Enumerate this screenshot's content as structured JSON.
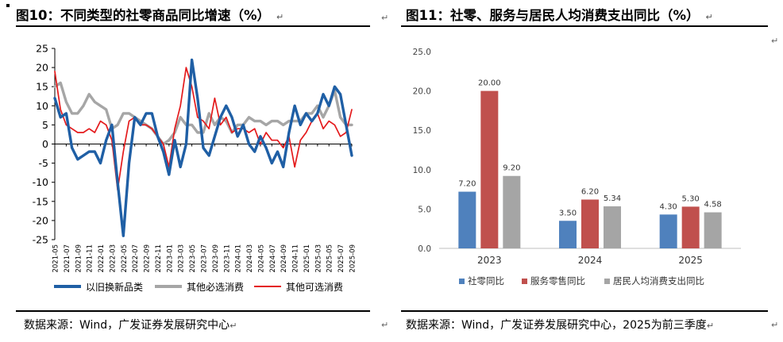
{
  "left": {
    "title": "图10：不同类型的社零商品同比增速（%）",
    "source": "数据来源：Wind，广发证券发展研究中心",
    "chart_data": {
      "type": "line",
      "title": "不同类型的社零商品同比增速（%）",
      "ylim": [
        -25,
        25
      ],
      "yticks": [
        "25",
        "20",
        "15",
        "10",
        "5",
        "0",
        "-5",
        "-10",
        "-15",
        "-20",
        "-25"
      ],
      "xticklabels": [
        "2021-05",
        "2021-07",
        "2021-09",
        "2021-11",
        "2022-01",
        "2022-03",
        "2022-05",
        "2022-07",
        "2022-09",
        "2022-11",
        "2023-01",
        "2023-03",
        "2023-05",
        "2023-07",
        "2023-09",
        "2023-11",
        "2024-01",
        "2024-03",
        "2024-05",
        "2024-07",
        "2024-09",
        "2024-11",
        "2025-01",
        "2025-03",
        "2025-05",
        "2025-07",
        "2025-09"
      ],
      "x": [
        "2021-05",
        "2021-06",
        "2021-07",
        "2021-08",
        "2021-09",
        "2021-10",
        "2021-11",
        "2021-12",
        "2022-01",
        "2022-02",
        "2022-03",
        "2022-04",
        "2022-05",
        "2022-06",
        "2022-07",
        "2022-08",
        "2022-09",
        "2022-10",
        "2022-11",
        "2022-12",
        "2023-01",
        "2023-02",
        "2023-03",
        "2023-04",
        "2023-05",
        "2023-06",
        "2023-07",
        "2023-08",
        "2023-09",
        "2023-10",
        "2023-11",
        "2023-12",
        "2024-01",
        "2024-02",
        "2024-03",
        "2024-04",
        "2024-05",
        "2024-06",
        "2024-07",
        "2024-08",
        "2024-09",
        "2024-10",
        "2024-11",
        "2024-12",
        "2025-01",
        "2025-02",
        "2025-03",
        "2025-04",
        "2025-05",
        "2025-06",
        "2025-07",
        "2025-08",
        "2025-09"
      ],
      "series": [
        {
          "name": "以旧换新品类",
          "color": "#1f5fa5",
          "values": [
            12,
            7,
            8,
            -1,
            -4,
            -3,
            -2,
            -2,
            -5,
            1,
            5,
            -10,
            -24,
            -5,
            7,
            5,
            8,
            8,
            2,
            -2,
            -8,
            1,
            -6,
            0,
            22,
            12,
            -1,
            -3,
            2,
            7,
            10,
            7,
            2,
            5,
            0,
            -2,
            2,
            -1,
            -5,
            -2,
            -6,
            3,
            10,
            5,
            8,
            6,
            8,
            13,
            10,
            15,
            13,
            5,
            -3
          ]
        },
        {
          "name": "其他必选消费",
          "color": "#a6a6a6",
          "values": [
            15,
            16,
            11,
            8,
            8,
            10,
            13,
            11,
            10,
            9,
            4,
            5,
            8,
            8,
            7,
            6,
            5,
            4,
            2,
            0,
            1,
            3,
            7,
            5,
            5,
            3,
            3,
            8,
            5,
            7,
            6,
            3,
            5,
            5,
            7,
            6,
            6,
            5,
            6,
            6,
            5,
            6,
            6,
            6,
            8,
            8,
            10,
            7,
            10,
            14,
            7,
            5,
            5
          ]
        },
        {
          "name": "其他可选消费",
          "color": "#e41a1c",
          "values": [
            19,
            9,
            5,
            4,
            3,
            3,
            4,
            3,
            6,
            5,
            1,
            -12,
            -2,
            6,
            7,
            5,
            5,
            4,
            2,
            0,
            -6,
            4,
            10,
            20,
            15,
            7,
            6,
            4,
            12,
            5,
            7,
            3,
            4,
            4,
            3,
            4,
            0,
            3,
            1,
            1,
            -1,
            2,
            -6,
            1,
            3,
            6,
            8,
            4,
            6,
            5,
            2,
            3,
            9
          ]
        }
      ]
    }
  },
  "right": {
    "title": "图11：社零、服务与居民人均消费支出同比（%）",
    "source": "数据来源：Wind，广发证券发展研究中心，2025为前三季度",
    "chart_data": {
      "type": "bar",
      "title": "社零、服务与居民人均消费支出同比（%）",
      "categories": [
        "2023",
        "2024",
        "2025"
      ],
      "ylim": [
        0,
        25
      ],
      "yticks": [
        "0.0",
        "5.0",
        "10.0",
        "15.0",
        "20.0",
        "25.0"
      ],
      "series": [
        {
          "name": "社零同比",
          "color": "#4f81bd",
          "values": [
            7.2,
            3.5,
            4.3
          ],
          "labels": [
            "7.20",
            "3.50",
            "4.30"
          ]
        },
        {
          "name": "服务零售同比",
          "color": "#c0504d",
          "values": [
            20.0,
            6.2,
            5.3
          ],
          "labels": [
            "20.00",
            "6.20",
            "5.30"
          ]
        },
        {
          "name": "居民人均消费支出同比",
          "color": "#a5a5a5",
          "values": [
            9.2,
            5.34,
            4.58
          ],
          "labels": [
            "9.20",
            "5.34",
            "4.58"
          ]
        }
      ]
    }
  },
  "marks": {
    "arrow": "↵",
    "bullet": "▪"
  }
}
